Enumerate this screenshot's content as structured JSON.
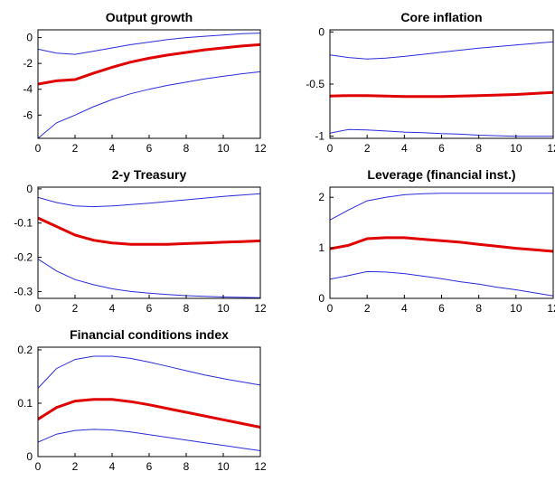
{
  "colors": {
    "median": "#e00000",
    "band": "#2b2bdb",
    "axis": "#000000"
  },
  "chart_data": [
    {
      "type": "line",
      "title": "Output growth",
      "xlim": [
        0,
        12
      ],
      "ylim": [
        -7.8,
        0.6
      ],
      "xticks": [
        0,
        2,
        4,
        6,
        8,
        10,
        12
      ],
      "yticks": [
        0,
        -2,
        -4,
        -6
      ],
      "ytick_labels": [
        "0",
        "-2",
        "-4",
        "-6"
      ],
      "x": [
        0,
        1,
        2,
        3,
        4,
        5,
        6,
        7,
        8,
        9,
        10,
        11,
        12
      ],
      "series": [
        {
          "role": "upper",
          "values": [
            -0.9,
            -1.2,
            -1.3,
            -1.05,
            -0.8,
            -0.55,
            -0.35,
            -0.15,
            0.0,
            0.1,
            0.2,
            0.3,
            0.35
          ]
        },
        {
          "role": "median",
          "values": [
            -3.6,
            -3.35,
            -3.25,
            -2.75,
            -2.3,
            -1.9,
            -1.6,
            -1.35,
            -1.15,
            -0.95,
            -0.8,
            -0.65,
            -0.55
          ]
        },
        {
          "role": "lower",
          "values": [
            -7.8,
            -6.6,
            -6.0,
            -5.35,
            -4.8,
            -4.35,
            -4.0,
            -3.7,
            -3.45,
            -3.2,
            -3.0,
            -2.8,
            -2.65
          ]
        }
      ]
    },
    {
      "type": "line",
      "title": "Core inflation",
      "xlim": [
        0,
        12
      ],
      "ylim": [
        -1.02,
        0.02
      ],
      "xticks": [
        0,
        2,
        4,
        6,
        8,
        10,
        12
      ],
      "yticks": [
        0,
        -0.5,
        -1
      ],
      "ytick_labels": [
        "0",
        "-0.5",
        "-1"
      ],
      "x": [
        0,
        1,
        2,
        3,
        4,
        5,
        6,
        7,
        8,
        9,
        10,
        11,
        12
      ],
      "series": [
        {
          "role": "upper",
          "values": [
            -0.22,
            -0.245,
            -0.26,
            -0.25,
            -0.235,
            -0.215,
            -0.195,
            -0.175,
            -0.155,
            -0.14,
            -0.125,
            -0.11,
            -0.095
          ]
        },
        {
          "role": "median",
          "values": [
            -0.615,
            -0.61,
            -0.61,
            -0.615,
            -0.62,
            -0.62,
            -0.62,
            -0.615,
            -0.61,
            -0.605,
            -0.6,
            -0.59,
            -0.58
          ]
        },
        {
          "role": "lower",
          "values": [
            -0.97,
            -0.935,
            -0.94,
            -0.95,
            -0.96,
            -0.965,
            -0.975,
            -0.98,
            -0.99,
            -0.995,
            -1.0,
            -1.0,
            -1.0
          ]
        }
      ]
    },
    {
      "type": "line",
      "title": "2-y Treasury",
      "xlim": [
        0,
        12
      ],
      "ylim": [
        -0.32,
        0.005
      ],
      "xticks": [
        0,
        2,
        4,
        6,
        8,
        10,
        12
      ],
      "yticks": [
        0,
        -0.1,
        -0.2,
        -0.3
      ],
      "ytick_labels": [
        "0",
        "-0.1",
        "-0.2",
        "-0.3"
      ],
      "x": [
        0,
        1,
        2,
        3,
        4,
        5,
        6,
        7,
        8,
        9,
        10,
        11,
        12
      ],
      "series": [
        {
          "role": "upper",
          "values": [
            -0.025,
            -0.04,
            -0.05,
            -0.052,
            -0.05,
            -0.046,
            -0.042,
            -0.037,
            -0.032,
            -0.027,
            -0.022,
            -0.018,
            -0.014
          ]
        },
        {
          "role": "median",
          "values": [
            -0.085,
            -0.11,
            -0.135,
            -0.15,
            -0.158,
            -0.162,
            -0.162,
            -0.162,
            -0.16,
            -0.158,
            -0.156,
            -0.154,
            -0.152
          ]
        },
        {
          "role": "lower",
          "values": [
            -0.205,
            -0.24,
            -0.265,
            -0.28,
            -0.292,
            -0.3,
            -0.305,
            -0.309,
            -0.312,
            -0.314,
            -0.316,
            -0.317,
            -0.318
          ]
        }
      ]
    },
    {
      "type": "line",
      "title": "Leverage (financial inst.)",
      "xlim": [
        0,
        12
      ],
      "ylim": [
        0,
        2.2
      ],
      "xticks": [
        0,
        2,
        4,
        6,
        8,
        10,
        12
      ],
      "yticks": [
        0,
        1,
        2
      ],
      "ytick_labels": [
        "0",
        "1",
        "2"
      ],
      "x": [
        0,
        1,
        2,
        3,
        4,
        5,
        6,
        7,
        8,
        9,
        10,
        11,
        12
      ],
      "series": [
        {
          "role": "upper",
          "values": [
            1.55,
            1.75,
            1.93,
            2.0,
            2.05,
            2.07,
            2.08,
            2.08,
            2.08,
            2.08,
            2.08,
            2.08,
            2.08
          ]
        },
        {
          "role": "median",
          "values": [
            0.98,
            1.05,
            1.18,
            1.2,
            1.2,
            1.17,
            1.14,
            1.11,
            1.07,
            1.03,
            0.99,
            0.96,
            0.93
          ]
        },
        {
          "role": "lower",
          "values": [
            0.38,
            0.45,
            0.53,
            0.52,
            0.49,
            0.44,
            0.39,
            0.33,
            0.28,
            0.22,
            0.17,
            0.11,
            0.05
          ]
        }
      ]
    },
    {
      "type": "line",
      "title": "Financial conditions index",
      "xlim": [
        0,
        12
      ],
      "ylim": [
        0,
        0.205
      ],
      "xticks": [
        0,
        2,
        4,
        6,
        8,
        10,
        12
      ],
      "yticks": [
        0,
        0.1,
        0.2
      ],
      "ytick_labels": [
        "0",
        "0.1",
        "0.2"
      ],
      "x": [
        0,
        1,
        2,
        3,
        4,
        5,
        6,
        7,
        8,
        9,
        10,
        11,
        12
      ],
      "series": [
        {
          "role": "upper",
          "values": [
            0.128,
            0.165,
            0.182,
            0.188,
            0.188,
            0.184,
            0.177,
            0.169,
            0.161,
            0.153,
            0.146,
            0.14,
            0.134
          ]
        },
        {
          "role": "median",
          "values": [
            0.07,
            0.092,
            0.104,
            0.107,
            0.107,
            0.103,
            0.097,
            0.09,
            0.083,
            0.076,
            0.069,
            0.062,
            0.055
          ]
        },
        {
          "role": "lower",
          "values": [
            0.027,
            0.042,
            0.049,
            0.051,
            0.05,
            0.046,
            0.041,
            0.036,
            0.031,
            0.026,
            0.021,
            0.016,
            0.011
          ]
        }
      ]
    }
  ]
}
